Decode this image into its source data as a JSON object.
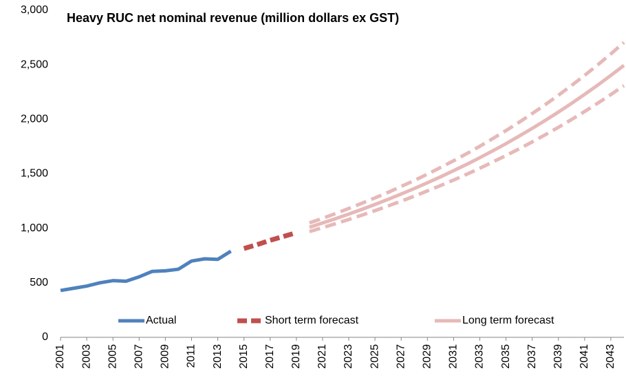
{
  "chart_data": {
    "type": "line",
    "title": "Heavy RUC net nominal revenue (million dollars ex GST)",
    "xlim": [
      2001,
      2044
    ],
    "xticks": [
      2001,
      2003,
      2005,
      2007,
      2009,
      2011,
      2013,
      2015,
      2017,
      2019,
      2021,
      2023,
      2025,
      2027,
      2029,
      2031,
      2033,
      2035,
      2037,
      2039,
      2041,
      2043
    ],
    "ylim": [
      0,
      3000
    ],
    "yticks": [
      0,
      500,
      {
        "value": 1000,
        "label": "1,000"
      },
      {
        "value": 1500,
        "label": "1,500"
      },
      {
        "value": 2000,
        "label": "2,000"
      },
      {
        "value": 2500,
        "label": "2,500"
      },
      {
        "value": 3000,
        "label": "3,000"
      }
    ],
    "grid": false,
    "legend": "bottom",
    "series": [
      {
        "name": "Actual",
        "color": "#4f81bd",
        "dash": false,
        "x": [
          2001,
          2002,
          2003,
          2004,
          2005,
          2006,
          2007,
          2008,
          2009,
          2010,
          2011,
          2012,
          2013,
          2014
        ],
        "values": [
          430,
          450,
          470,
          500,
          520,
          515,
          555,
          605,
          610,
          625,
          700,
          720,
          715,
          790
        ]
      },
      {
        "name": "Short term forecast",
        "color": "#c0504d",
        "dash": true,
        "x": [
          2015,
          2016,
          2017,
          2018,
          2019
        ],
        "values": [
          815,
          850,
          890,
          925,
          960
        ]
      },
      {
        "name": "Long term forecast",
        "color": "#e6b9b8",
        "dash": false,
        "x": [
          2020,
          2021,
          2022,
          2023,
          2024,
          2025,
          2026,
          2027,
          2028,
          2029,
          2030,
          2031,
          2032,
          2033,
          2034,
          2035,
          2036,
          2037,
          2038,
          2039,
          2040,
          2041,
          2042,
          2043,
          2044
        ],
        "values": [
          1010,
          1049,
          1089,
          1131,
          1174,
          1219,
          1266,
          1315,
          1365,
          1418,
          1472,
          1529,
          1587,
          1648,
          1712,
          1777,
          1846,
          1917,
          1990,
          2067,
          2146,
          2229,
          2314,
          2403,
          2495
        ]
      },
      {
        "color": "#e6b9b8",
        "dash": true,
        "x": [
          2020,
          2021,
          2022,
          2023,
          2024,
          2025,
          2026,
          2027,
          2028,
          2029,
          2030,
          2031,
          2032,
          2033,
          2034,
          2035,
          2036,
          2037,
          2038,
          2039,
          2040,
          2041,
          2042,
          2043,
          2044
        ],
        "values": [
          1050,
          1092,
          1136,
          1182,
          1230,
          1279,
          1330,
          1384,
          1439,
          1497,
          1558,
          1620,
          1685,
          1753,
          1824,
          1897,
          1973,
          2053,
          2135,
          2221,
          2310,
          2403,
          2500,
          2600,
          2705
        ]
      },
      {
        "color": "#e6b9b8",
        "dash": true,
        "x": [
          2020,
          2021,
          2022,
          2023,
          2024,
          2025,
          2026,
          2027,
          2028,
          2029,
          2030,
          2031,
          2032,
          2033,
          2034,
          2035,
          2036,
          2037,
          2038,
          2039,
          2040,
          2041,
          2042,
          2043,
          2044
        ],
        "values": [
          970,
          1006,
          1043,
          1081,
          1121,
          1162,
          1205,
          1249,
          1295,
          1343,
          1392,
          1443,
          1496,
          1551,
          1609,
          1668,
          1729,
          1793,
          1859,
          1927,
          1998,
          2072,
          2148,
          2227,
          2309
        ]
      }
    ]
  }
}
